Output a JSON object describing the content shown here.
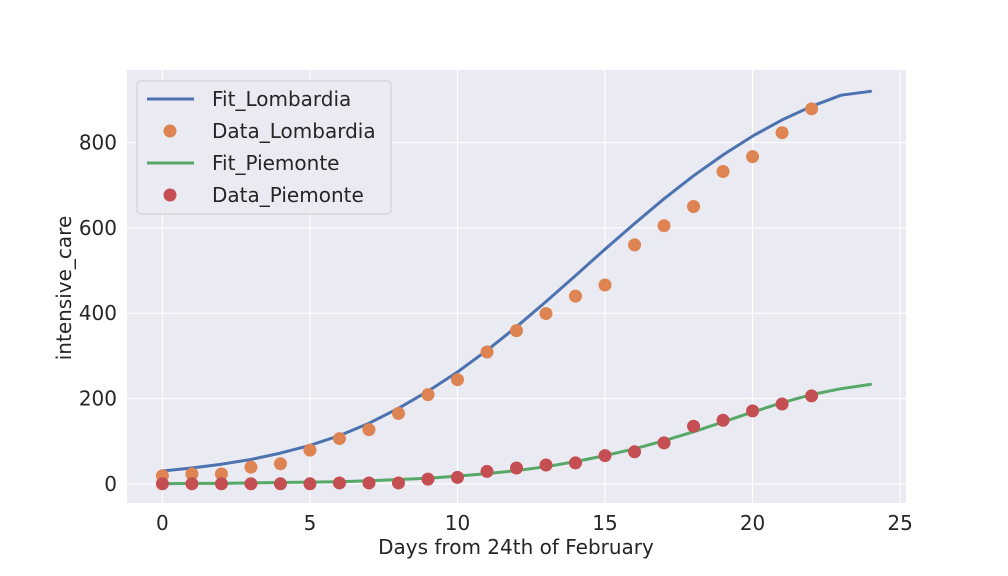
{
  "chart_data": {
    "type": "line",
    "xlabel": "Days from 24th of February",
    "ylabel": "intensive_care",
    "xlim": [
      -1.2,
      25.2
    ],
    "ylim": [
      -45,
      970
    ],
    "xticks": [
      0,
      5,
      10,
      15,
      20,
      25
    ],
    "yticks": [
      0,
      200,
      400,
      600,
      800
    ],
    "grid": true,
    "legend_position": "upper-left",
    "series": [
      {
        "name": "Fit_Lombardia",
        "kind": "line",
        "color": "#4c72b0",
        "x": [
          0,
          1,
          2,
          3,
          4,
          5,
          6,
          7,
          8,
          9,
          10,
          11,
          12,
          13,
          14,
          15,
          16,
          17,
          18,
          19,
          20,
          21,
          22,
          23,
          24
        ],
        "y": [
          30,
          37,
          46,
          57,
          72,
          90,
          113,
          142,
          177,
          217,
          262,
          313,
          368,
          427,
          488,
          550,
          610,
          668,
          722,
          771,
          815,
          853,
          885,
          911,
          920
        ]
      },
      {
        "name": "Data_Lombardia",
        "kind": "scatter",
        "color": "#dd8452",
        "x": [
          0,
          1,
          2,
          3,
          4,
          5,
          6,
          7,
          8,
          9,
          10,
          11,
          12,
          13,
          14,
          15,
          16,
          17,
          18,
          19,
          20,
          21,
          22
        ],
        "y": [
          19,
          23,
          23,
          39,
          47,
          79,
          106,
          127,
          165,
          209,
          244,
          309,
          359,
          399,
          440,
          466,
          560,
          605,
          650,
          732,
          767,
          823,
          879
        ]
      },
      {
        "name": "Fit_Piemonte",
        "kind": "line",
        "color": "#55a868",
        "x": [
          0,
          1,
          2,
          3,
          4,
          5,
          6,
          7,
          8,
          9,
          10,
          11,
          12,
          13,
          14,
          15,
          16,
          17,
          18,
          19,
          20,
          21,
          22,
          23,
          24
        ],
        "y": [
          0,
          1,
          1,
          2,
          3,
          4,
          5,
          7,
          10,
          13,
          18,
          24,
          31,
          40,
          52,
          66,
          82,
          101,
          122,
          145,
          168,
          190,
          209,
          223,
          233
        ]
      },
      {
        "name": "Data_Piemonte",
        "kind": "scatter",
        "color": "#c44e52",
        "x": [
          0,
          1,
          2,
          3,
          4,
          5,
          6,
          7,
          8,
          9,
          10,
          11,
          12,
          13,
          14,
          15,
          16,
          17,
          18,
          19,
          20,
          21,
          22
        ],
        "y": [
          0,
          0,
          0,
          0,
          0,
          0,
          2,
          2,
          2,
          11,
          15,
          29,
          37,
          44,
          49,
          66,
          75,
          96,
          135,
          149,
          171,
          187,
          206
        ]
      }
    ]
  }
}
